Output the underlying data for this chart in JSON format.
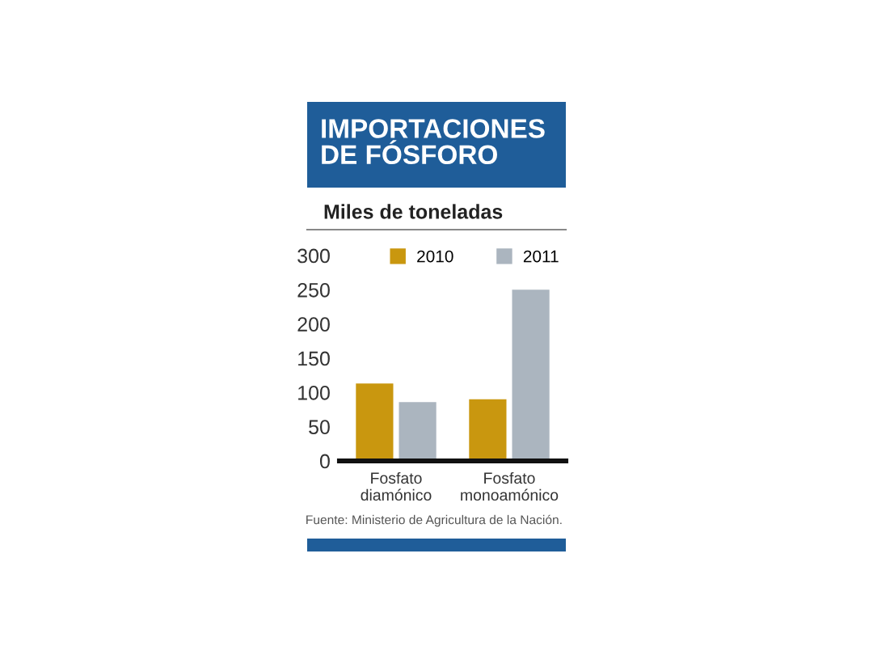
{
  "chart_data": {
    "type": "bar",
    "title": "IMPORTACIONES\nDE FÓSFORO",
    "ylabel": "Miles de toneladas",
    "categories": [
      "Fosfato\ndiamónico",
      "Fosfato\nmonoamónico"
    ],
    "series": [
      {
        "name": "2010",
        "color": "#c9970f",
        "values": [
          113,
          90
        ]
      },
      {
        "name": "2011",
        "color": "#abb5bf",
        "values": [
          86,
          250
        ]
      }
    ],
    "ylim": [
      0,
      300
    ],
    "yticks": [
      0,
      50,
      100,
      150,
      200,
      250,
      300
    ],
    "legend": "top right",
    "annotations": [
      "Fuente: Ministerio de Agricultura de la Nación."
    ]
  }
}
